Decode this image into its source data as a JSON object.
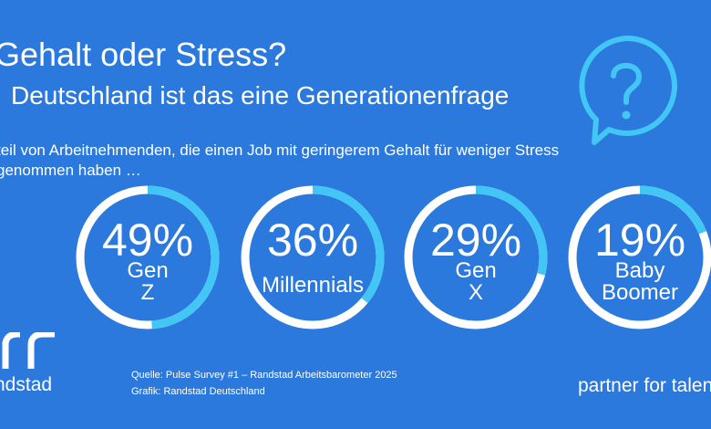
{
  "header": {
    "title": "Gehalt oder Stress?",
    "subtitle": "Deutschland ist das eine Generationenfrage",
    "description": "teil von Arbeitnehmenden, die einen Job mit geringerem Gehalt für weniger Stress genommen haben …"
  },
  "chart_data": {
    "type": "pie",
    "title": "Gehalt oder Stress?",
    "categories": [
      "Gen Z",
      "Millennials",
      "Gen X",
      "Baby Boomer"
    ],
    "values": [
      49,
      36,
      29,
      19
    ],
    "value_labels": [
      "49%",
      "36%",
      "29%",
      "19%"
    ],
    "unit": "%",
    "max": 100
  },
  "colors": {
    "background": "#2b79dc",
    "ring_track": "#ffffff",
    "ring_fill": "#42c6f5",
    "text": "#ffffff",
    "icon": "#42c6f5"
  },
  "icons": {
    "question": "question-bubble-icon",
    "logo": "randstad-logo-icon"
  },
  "footer": {
    "brand": "ndstad",
    "source": "Quelle: Pulse Survey #1 – Randstad Arbeitsbarometer 2025",
    "credit": "Grafik: Randstad Deutschland",
    "tagline": "partner for talen"
  }
}
